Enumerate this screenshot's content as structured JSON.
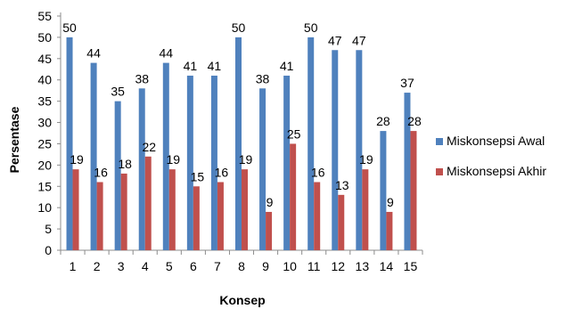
{
  "chart_data": {
    "type": "bar",
    "xlabel": "Konsep",
    "ylabel": "Persentase",
    "ylim": [
      0,
      55
    ],
    "ytick_step": 5,
    "categories": [
      "1",
      "2",
      "3",
      "4",
      "5",
      "6",
      "7",
      "8",
      "9",
      "10",
      "11",
      "12",
      "13",
      "14",
      "15"
    ],
    "series": [
      {
        "name": "Miskonsepsi Awal",
        "color": "#4f81bd",
        "values": [
          50,
          44,
          35,
          38,
          44,
          41,
          41,
          50,
          38,
          41,
          50,
          47,
          47,
          28,
          37
        ]
      },
      {
        "name": "Miskonsepsi Akhir",
        "color": "#c0504d",
        "values": [
          19,
          16,
          18,
          22,
          19,
          15,
          16,
          19,
          9,
          25,
          16,
          13,
          19,
          9,
          28
        ]
      }
    ],
    "legend_position": "right",
    "grid": false
  }
}
